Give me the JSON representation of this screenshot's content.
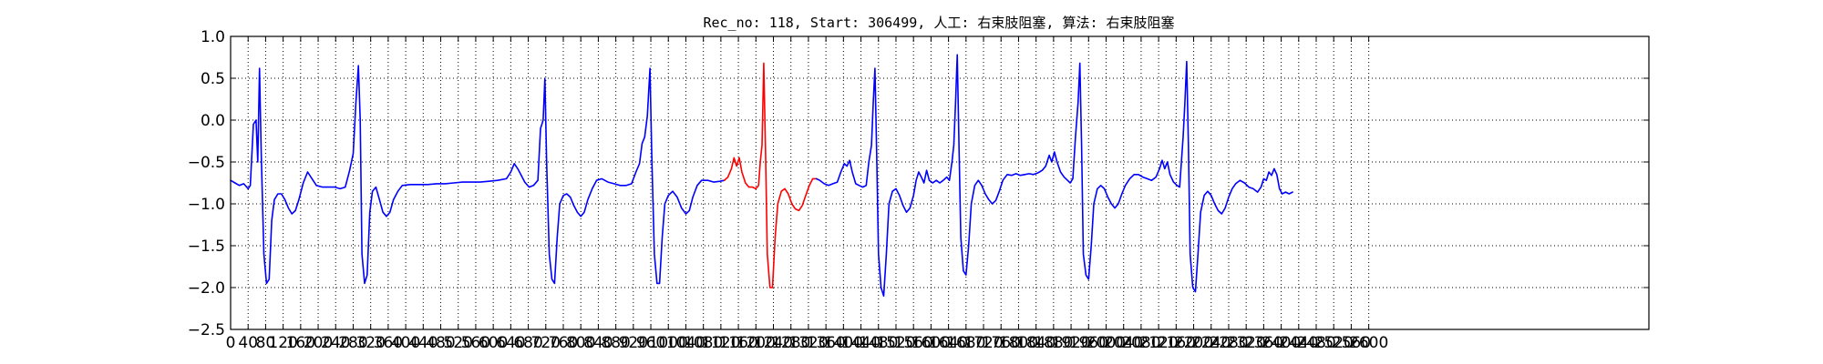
{
  "chart_data": {
    "type": "line",
    "title": "Rec_no: 118, Start: 306499, 人工: 右束肢阻塞, 算法: 右束肢阻塞",
    "xlabel": "",
    "ylabel": "",
    "xlim": [
      0,
      3240
    ],
    "ylim": [
      -2.5,
      1.0
    ],
    "grid": true,
    "y_ticks": [
      "1.0",
      "0.5",
      "0.0",
      "−0.5",
      "−1.0",
      "−1.5",
      "−2.0",
      "−2.5"
    ],
    "y_tick_values": [
      1.0,
      0.5,
      0.0,
      -0.5,
      -1.0,
      -1.5,
      -2.0,
      -2.5
    ],
    "x_tick_step": 40,
    "x_tick_labels": [
      "0",
      "40",
      "80",
      "120",
      "160",
      "200",
      "240",
      "280",
      "320",
      "360",
      "400",
      "440",
      "480",
      "520",
      "560",
      "600",
      "640",
      "680",
      "720",
      "760",
      "800",
      "840",
      "880",
      "920",
      "960",
      "1000",
      "1040",
      "1080",
      "1120",
      "1160",
      "1200",
      "1240",
      "1280",
      "1320",
      "1360",
      "1400",
      "1440",
      "1480",
      "1520",
      "1560",
      "1600",
      "1640",
      "1680",
      "1720",
      "1760",
      "1800",
      "1840",
      "1880",
      "1920",
      "1960",
      "2000",
      "2040",
      "2080",
      "2120",
      "2160",
      "2200",
      "2240",
      "2280",
      "2320",
      "2360",
      "2400",
      "2440",
      "2480",
      "2520",
      "2560",
      "2600"
    ],
    "series": [
      {
        "color": "#0000ff",
        "points": [
          [
            0,
            -0.72
          ],
          [
            10,
            -0.75
          ],
          [
            20,
            -0.78
          ],
          [
            30,
            -0.76
          ],
          [
            40,
            -0.82
          ],
          [
            45,
            -0.78
          ],
          [
            52,
            -0.05
          ],
          [
            58,
            0.0
          ],
          [
            62,
            -0.5
          ],
          [
            66,
            0.62
          ],
          [
            70,
            -0.4
          ],
          [
            76,
            -1.6
          ],
          [
            82,
            -1.95
          ],
          [
            88,
            -1.9
          ],
          [
            94,
            -1.2
          ],
          [
            100,
            -0.95
          ],
          [
            108,
            -0.88
          ],
          [
            116,
            -0.88
          ],
          [
            124,
            -0.95
          ],
          [
            132,
            -1.05
          ],
          [
            140,
            -1.12
          ],
          [
            148,
            -1.08
          ],
          [
            156,
            -0.95
          ],
          [
            166,
            -0.75
          ],
          [
            176,
            -0.62
          ],
          [
            186,
            -0.7
          ],
          [
            196,
            -0.78
          ],
          [
            210,
            -0.8
          ],
          [
            224,
            -0.8
          ],
          [
            238,
            -0.8
          ],
          [
            250,
            -0.82
          ],
          [
            262,
            -0.8
          ],
          [
            272,
            -0.6
          ],
          [
            280,
            -0.4
          ],
          [
            286,
            0.2
          ],
          [
            292,
            0.65
          ],
          [
            296,
            0.0
          ],
          [
            300,
            -1.6
          ],
          [
            306,
            -1.95
          ],
          [
            312,
            -1.85
          ],
          [
            318,
            -1.1
          ],
          [
            324,
            -0.85
          ],
          [
            332,
            -0.8
          ],
          [
            340,
            -0.95
          ],
          [
            348,
            -1.1
          ],
          [
            356,
            -1.15
          ],
          [
            364,
            -1.1
          ],
          [
            372,
            -0.95
          ],
          [
            382,
            -0.85
          ],
          [
            392,
            -0.78
          ],
          [
            410,
            -0.77
          ],
          [
            430,
            -0.77
          ],
          [
            450,
            -0.77
          ],
          [
            470,
            -0.76
          ],
          [
            490,
            -0.76
          ],
          [
            510,
            -0.75
          ],
          [
            530,
            -0.74
          ],
          [
            550,
            -0.74
          ],
          [
            570,
            -0.74
          ],
          [
            590,
            -0.73
          ],
          [
            610,
            -0.72
          ],
          [
            630,
            -0.7
          ],
          [
            640,
            -0.62
          ],
          [
            648,
            -0.52
          ],
          [
            656,
            -0.58
          ],
          [
            664,
            -0.66
          ],
          [
            672,
            -0.74
          ],
          [
            682,
            -0.8
          ],
          [
            692,
            -0.78
          ],
          [
            702,
            -0.72
          ],
          [
            708,
            -0.1
          ],
          [
            714,
            0.0
          ],
          [
            718,
            0.5
          ],
          [
            722,
            -0.5
          ],
          [
            728,
            -1.6
          ],
          [
            734,
            -1.9
          ],
          [
            740,
            -1.95
          ],
          [
            746,
            -1.4
          ],
          [
            752,
            -1.0
          ],
          [
            760,
            -0.9
          ],
          [
            768,
            -0.88
          ],
          [
            776,
            -0.92
          ],
          [
            784,
            -1.02
          ],
          [
            792,
            -1.1
          ],
          [
            800,
            -1.15
          ],
          [
            808,
            -1.1
          ],
          [
            816,
            -0.95
          ],
          [
            826,
            -0.82
          ],
          [
            836,
            -0.72
          ],
          [
            848,
            -0.7
          ],
          [
            862,
            -0.74
          ],
          [
            876,
            -0.76
          ],
          [
            890,
            -0.78
          ],
          [
            904,
            -0.78
          ],
          [
            916,
            -0.76
          ],
          [
            926,
            -0.62
          ],
          [
            934,
            -0.52
          ],
          [
            940,
            -0.28
          ],
          [
            946,
            -0.2
          ],
          [
            952,
            0.05
          ],
          [
            958,
            0.62
          ],
          [
            962,
            -0.4
          ],
          [
            968,
            -1.6
          ],
          [
            974,
            -1.95
          ],
          [
            980,
            -1.95
          ],
          [
            986,
            -1.4
          ],
          [
            992,
            -1.0
          ],
          [
            1000,
            -0.9
          ],
          [
            1010,
            -0.85
          ],
          [
            1020,
            -0.92
          ],
          [
            1030,
            -1.05
          ],
          [
            1040,
            -1.12
          ],
          [
            1048,
            -1.08
          ],
          [
            1056,
            -0.92
          ],
          [
            1066,
            -0.78
          ],
          [
            1076,
            -0.72
          ],
          [
            1090,
            -0.72
          ],
          [
            1104,
            -0.74
          ],
          [
            1118,
            -0.73
          ],
          [
            1128,
            -0.72
          ]
        ]
      },
      {
        "color": "#ff0000",
        "points": [
          [
            1128,
            -0.72
          ],
          [
            1136,
            -0.68
          ],
          [
            1144,
            -0.58
          ],
          [
            1150,
            -0.45
          ],
          [
            1156,
            -0.55
          ],
          [
            1162,
            -0.45
          ],
          [
            1168,
            -0.62
          ],
          [
            1176,
            -0.75
          ],
          [
            1184,
            -0.8
          ],
          [
            1192,
            -0.8
          ],
          [
            1200,
            -0.82
          ],
          [
            1206,
            -0.78
          ],
          [
            1210,
            -0.5
          ],
          [
            1214,
            -0.3
          ],
          [
            1218,
            0.68
          ],
          [
            1222,
            -0.4
          ],
          [
            1226,
            -1.6
          ],
          [
            1232,
            -2.0
          ],
          [
            1238,
            -2.0
          ],
          [
            1244,
            -1.4
          ],
          [
            1250,
            -1.0
          ],
          [
            1258,
            -0.85
          ],
          [
            1266,
            -0.82
          ],
          [
            1274,
            -0.88
          ],
          [
            1282,
            -1.0
          ],
          [
            1290,
            -1.06
          ],
          [
            1298,
            -1.08
          ],
          [
            1306,
            -1.02
          ],
          [
            1314,
            -0.9
          ],
          [
            1322,
            -0.78
          ],
          [
            1330,
            -0.7
          ],
          [
            1338,
            -0.7
          ]
        ]
      },
      {
        "color": "#0000ff",
        "points": [
          [
            1338,
            -0.7
          ],
          [
            1346,
            -0.72
          ],
          [
            1356,
            -0.76
          ],
          [
            1366,
            -0.78
          ],
          [
            1376,
            -0.76
          ],
          [
            1386,
            -0.74
          ],
          [
            1394,
            -0.62
          ],
          [
            1402,
            -0.52
          ],
          [
            1408,
            -0.55
          ],
          [
            1414,
            -0.48
          ],
          [
            1420,
            -0.62
          ],
          [
            1428,
            -0.76
          ],
          [
            1436,
            -0.78
          ],
          [
            1444,
            -0.8
          ],
          [
            1452,
            -0.78
          ],
          [
            1458,
            -0.5
          ],
          [
            1464,
            -0.3
          ],
          [
            1468,
            0.2
          ],
          [
            1472,
            0.62
          ],
          [
            1476,
            -0.4
          ],
          [
            1480,
            -1.6
          ],
          [
            1486,
            -2.0
          ],
          [
            1492,
            -2.1
          ],
          [
            1498,
            -1.6
          ],
          [
            1504,
            -1.0
          ],
          [
            1512,
            -0.85
          ],
          [
            1520,
            -0.82
          ],
          [
            1528,
            -0.9
          ],
          [
            1536,
            -1.02
          ],
          [
            1544,
            -1.1
          ],
          [
            1552,
            -1.05
          ],
          [
            1560,
            -0.9
          ],
          [
            1566,
            -0.72
          ],
          [
            1572,
            -0.62
          ],
          [
            1578,
            -0.68
          ],
          [
            1584,
            -0.75
          ],
          [
            1590,
            -0.6
          ],
          [
            1596,
            -0.72
          ],
          [
            1604,
            -0.75
          ],
          [
            1612,
            -0.72
          ],
          [
            1620,
            -0.75
          ],
          [
            1628,
            -0.72
          ],
          [
            1636,
            -0.68
          ],
          [
            1642,
            -0.72
          ],
          [
            1648,
            -0.5
          ],
          [
            1652,
            -0.3
          ],
          [
            1656,
            0.2
          ],
          [
            1660,
            0.78
          ],
          [
            1664,
            -0.3
          ],
          [
            1668,
            -1.4
          ],
          [
            1674,
            -1.8
          ],
          [
            1680,
            -1.85
          ],
          [
            1686,
            -1.5
          ],
          [
            1692,
            -1.0
          ],
          [
            1700,
            -0.78
          ],
          [
            1708,
            -0.72
          ],
          [
            1716,
            -0.78
          ],
          [
            1724,
            -0.88
          ],
          [
            1732,
            -0.95
          ],
          [
            1740,
            -1.0
          ],
          [
            1748,
            -0.96
          ],
          [
            1756,
            -0.85
          ],
          [
            1764,
            -0.72
          ],
          [
            1774,
            -0.65
          ],
          [
            1784,
            -0.66
          ],
          [
            1794,
            -0.64
          ],
          [
            1804,
            -0.66
          ],
          [
            1814,
            -0.65
          ],
          [
            1824,
            -0.64
          ],
          [
            1834,
            -0.65
          ],
          [
            1844,
            -0.63
          ],
          [
            1854,
            -0.6
          ],
          [
            1862,
            -0.55
          ],
          [
            1870,
            -0.42
          ],
          [
            1876,
            -0.5
          ],
          [
            1882,
            -0.38
          ],
          [
            1888,
            -0.5
          ],
          [
            1896,
            -0.62
          ],
          [
            1904,
            -0.68
          ],
          [
            1912,
            -0.72
          ],
          [
            1918,
            -0.75
          ],
          [
            1924,
            -0.7
          ],
          [
            1930,
            -0.2
          ],
          [
            1936,
            0.22
          ],
          [
            1940,
            0.68
          ],
          [
            1944,
            -0.3
          ],
          [
            1948,
            -1.6
          ],
          [
            1954,
            -1.85
          ],
          [
            1960,
            -1.9
          ],
          [
            1966,
            -1.5
          ],
          [
            1972,
            -1.0
          ],
          [
            1980,
            -0.82
          ],
          [
            1988,
            -0.78
          ],
          [
            1996,
            -0.82
          ],
          [
            2004,
            -0.92
          ],
          [
            2012,
            -1.0
          ],
          [
            2020,
            -1.05
          ],
          [
            2028,
            -1.0
          ],
          [
            2036,
            -0.88
          ],
          [
            2044,
            -0.78
          ],
          [
            2054,
            -0.7
          ],
          [
            2064,
            -0.65
          ],
          [
            2074,
            -0.65
          ],
          [
            2084,
            -0.68
          ],
          [
            2094,
            -0.7
          ],
          [
            2104,
            -0.72
          ],
          [
            2114,
            -0.68
          ],
          [
            2122,
            -0.58
          ],
          [
            2128,
            -0.48
          ],
          [
            2134,
            -0.58
          ],
          [
            2140,
            -0.5
          ],
          [
            2146,
            -0.65
          ],
          [
            2154,
            -0.74
          ],
          [
            2162,
            -0.78
          ],
          [
            2168,
            -0.8
          ],
          [
            2172,
            -0.5
          ],
          [
            2176,
            -0.2
          ],
          [
            2180,
            0.2
          ],
          [
            2184,
            0.7
          ],
          [
            2188,
            -0.3
          ],
          [
            2192,
            -1.6
          ],
          [
            2198,
            -2.0
          ],
          [
            2204,
            -2.05
          ],
          [
            2210,
            -1.6
          ],
          [
            2216,
            -1.1
          ],
          [
            2224,
            -0.9
          ],
          [
            2232,
            -0.85
          ],
          [
            2240,
            -0.9
          ],
          [
            2248,
            -1.0
          ],
          [
            2256,
            -1.08
          ],
          [
            2264,
            -1.12
          ],
          [
            2272,
            -1.05
          ],
          [
            2280,
            -0.92
          ],
          [
            2288,
            -0.82
          ],
          [
            2296,
            -0.76
          ],
          [
            2306,
            -0.72
          ],
          [
            2316,
            -0.75
          ],
          [
            2326,
            -0.8
          ],
          [
            2336,
            -0.82
          ],
          [
            2346,
            -0.86
          ],
          [
            2354,
            -0.8
          ],
          [
            2360,
            -0.7
          ],
          [
            2366,
            -0.72
          ],
          [
            2372,
            -0.62
          ],
          [
            2378,
            -0.66
          ],
          [
            2384,
            -0.58
          ],
          [
            2390,
            -0.65
          ],
          [
            2396,
            -0.82
          ],
          [
            2402,
            -0.88
          ],
          [
            2410,
            -0.86
          ],
          [
            2418,
            -0.88
          ],
          [
            2426,
            -0.86
          ]
        ]
      }
    ]
  }
}
